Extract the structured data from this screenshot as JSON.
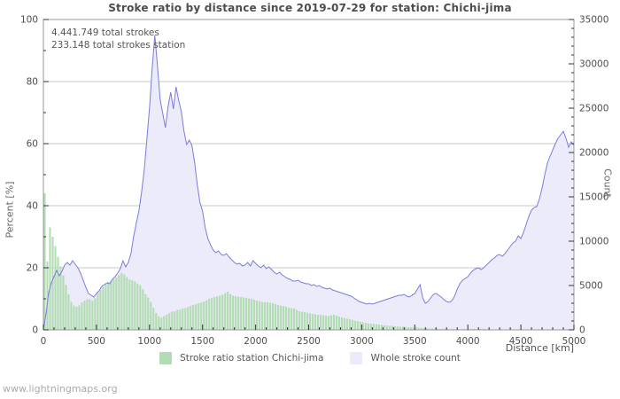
{
  "page": {
    "watermark": "www.lightningmaps.org"
  },
  "chart_data": {
    "type": "combo",
    "title": "Stroke ratio by distance since 2019-07-29 for station: Chichi-jima",
    "annotations": [
      "4.441.749 total strokes",
      "233.148 total strokes station"
    ],
    "xlabel": "Distance  [km]",
    "ylabel_left": "Percent  [%]",
    "ylabel_right": "Count",
    "x_range": [
      0,
      5000
    ],
    "x_step": 25,
    "x_major_ticks": [
      0,
      500,
      1000,
      1500,
      2000,
      2500,
      3000,
      3500,
      4000,
      4500,
      5000
    ],
    "x_minor_step": 100,
    "left_axis": {
      "range": [
        0,
        100
      ],
      "major_ticks": [
        0,
        20,
        40,
        60,
        80,
        100
      ],
      "minor_step": 10
    },
    "right_axis": {
      "range": [
        0,
        35000
      ],
      "major_ticks": [
        0,
        5000,
        10000,
        15000,
        20000,
        25000,
        30000,
        35000
      ],
      "minor_step": 1000
    },
    "grid": "horizontal-major",
    "legend_position": "bottom-center",
    "colors": {
      "grid": "#c8c8c8",
      "border": "#999999",
      "tick": "#333333",
      "text": "#4d4d4d",
      "bar": "#b2ddb2",
      "line": "#7b7be0",
      "fill": "#ebebf9"
    },
    "series": [
      {
        "name": "Stroke ratio station Chichi-jima",
        "type": "bar",
        "axis": "left",
        "unit": "%",
        "values": [
          44,
          22,
          33,
          30,
          27,
          23.5,
          20.5,
          17.5,
          14.5,
          11.5,
          9,
          7.8,
          7.4,
          7.9,
          8.8,
          9.4,
          9.8,
          9.9,
          9.4,
          10.2,
          11.8,
          12.9,
          13.9,
          14.8,
          15.4,
          15.8,
          16.3,
          16.9,
          17.7,
          18.4,
          17.9,
          17,
          16.2,
          16,
          15.6,
          14.9,
          14.4,
          13.1,
          11.5,
          10.4,
          9,
          7.1,
          5.4,
          4.4,
          3.9,
          4.4,
          4.9,
          5.4,
          5.9,
          6,
          6.4,
          6.5,
          6.9,
          7,
          7.4,
          7.7,
          8,
          8.3,
          8.6,
          8.8,
          9.1,
          9.5,
          10,
          10.3,
          10.6,
          10.8,
          11,
          11.3,
          11.8,
          12.3,
          11.5,
          11,
          10.8,
          10.7,
          10.6,
          10.4,
          10.3,
          10.1,
          10,
          9.7,
          9.4,
          9.2,
          9,
          8.9,
          8.9,
          8.7,
          8.6,
          8.3,
          8,
          7.8,
          7.7,
          7.4,
          7.1,
          7,
          6.9,
          6.4,
          6,
          5.8,
          5.7,
          5.5,
          5.3,
          5.1,
          5,
          4.8,
          4.9,
          4.7,
          4.6,
          4.5,
          4.7,
          4.9,
          4.6,
          4.3,
          4,
          3.8,
          3.6,
          3.4,
          3.2,
          3,
          2.8,
          2.6,
          2.4,
          2.2,
          2.1,
          2,
          1.9,
          1.8,
          1.7,
          1.6,
          1.5,
          1.4,
          1.3,
          1.3,
          1.2,
          1.1,
          1,
          1,
          0.9,
          0.8,
          0.8,
          0.7,
          0.9,
          0.7,
          0.6,
          0.5,
          0.5,
          0.4,
          0.5,
          0.4,
          0.4,
          0.3,
          0.3,
          0.3,
          0.2,
          0.2,
          0.3,
          0.2,
          0.2,
          0.2,
          0.3,
          0.2,
          0.2,
          0.2,
          0.3,
          0.2,
          0.3,
          0.2,
          0.3,
          0.2,
          0.2,
          0.1,
          0.1,
          0.1,
          0.1,
          0.1,
          0.1,
          0.1,
          0.1,
          0,
          0,
          0,
          0,
          0,
          0,
          0,
          0,
          0,
          0,
          0,
          0,
          0,
          0,
          0,
          0,
          0,
          0,
          0,
          0,
          0,
          0,
          0,
          0,
          0
        ]
      },
      {
        "name": "Whole stroke count",
        "type": "area-line",
        "axis": "right",
        "unit": "strokes",
        "values": [
          100,
          1800,
          4200,
          5300,
          6000,
          6700,
          6100,
          6600,
          7300,
          7600,
          7300,
          7800,
          7400,
          7000,
          6400,
          5600,
          4800,
          4100,
          3900,
          3700,
          4100,
          4400,
          4900,
          5100,
          5300,
          5200,
          5700,
          6000,
          6400,
          6900,
          7800,
          7100,
          7600,
          8600,
          10500,
          12000,
          13400,
          15500,
          18000,
          21500,
          25000,
          29500,
          33200,
          29800,
          26000,
          24400,
          22800,
          25200,
          26800,
          24900,
          27400,
          25900,
          24600,
          22400,
          20900,
          21400,
          20800,
          18900,
          16400,
          14400,
          13400,
          11500,
          10300,
          9600,
          9000,
          8700,
          8900,
          8500,
          8400,
          8600,
          8200,
          7900,
          7600,
          7400,
          7500,
          7200,
          7300,
          7600,
          7200,
          7800,
          7500,
          7200,
          7000,
          7300,
          6900,
          7100,
          6800,
          6500,
          6300,
          6500,
          6200,
          6000,
          5800,
          5700,
          5500,
          5500,
          5600,
          5400,
          5300,
          5200,
          5200,
          5000,
          5100,
          4900,
          5000,
          4800,
          4700,
          4600,
          4700,
          4500,
          4400,
          4300,
          4200,
          4100,
          4000,
          3900,
          3800,
          3600,
          3400,
          3200,
          3100,
          3000,
          2900,
          3000,
          2900,
          3000,
          3100,
          3200,
          3300,
          3400,
          3500,
          3600,
          3700,
          3800,
          3900,
          3900,
          4000,
          3800,
          3700,
          3900,
          4100,
          4600,
          5100,
          3600,
          3000,
          3200,
          3600,
          4000,
          4100,
          3900,
          3700,
          3400,
          3200,
          3100,
          3300,
          3800,
          4600,
          5200,
          5600,
          5800,
          6000,
          6400,
          6700,
          6900,
          7000,
          6800,
          7000,
          7300,
          7600,
          7900,
          8100,
          8400,
          8500,
          8300,
          8600,
          9000,
          9400,
          9800,
          10000,
          10600,
          10300,
          11000,
          11900,
          12800,
          13500,
          13800,
          13900,
          14800,
          16000,
          17500,
          18800,
          19600,
          20300,
          21000,
          21600,
          22000,
          22400,
          21600,
          20600,
          21200,
          20800
        ]
      }
    ]
  }
}
